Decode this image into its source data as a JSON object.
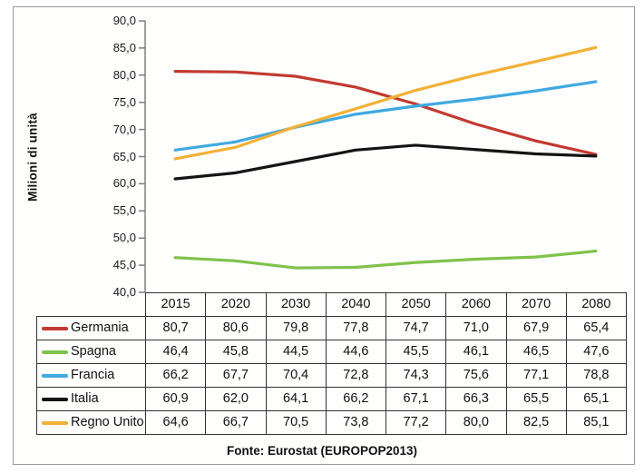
{
  "chart_data": {
    "type": "line",
    "title": "",
    "xlabel": "",
    "ylabel": "Milioni di unità",
    "ylim": [
      40,
      90
    ],
    "ytick_step": 5,
    "ytick_labels": [
      "90,0",
      "85,0",
      "80,0",
      "75,0",
      "70,0",
      "65,0",
      "60,0",
      "55,0",
      "50,0",
      "45,0",
      "40,0"
    ],
    "grid": false,
    "legend_position": "table-left-column",
    "categories": [
      "2015",
      "2020",
      "2030",
      "2040",
      "2050",
      "2060",
      "2070",
      "2080"
    ],
    "series": [
      {
        "name": "Germania",
        "color": "#c23a30",
        "values": [
          80.7,
          80.6,
          79.8,
          77.8,
          74.7,
          71.0,
          67.9,
          65.4
        ]
      },
      {
        "name": "Spagna",
        "color": "#7fc24a",
        "values": [
          46.4,
          45.8,
          44.5,
          44.6,
          45.5,
          46.1,
          46.5,
          47.6
        ]
      },
      {
        "name": "Francia",
        "color": "#3fa9e0",
        "values": [
          66.2,
          67.7,
          70.4,
          72.8,
          74.3,
          75.6,
          77.1,
          78.8
        ]
      },
      {
        "name": "Italia",
        "color": "#141414",
        "values": [
          60.9,
          62.0,
          64.1,
          66.2,
          67.1,
          66.3,
          65.5,
          65.1
        ]
      },
      {
        "name": "Regno Unito",
        "color": "#f2b136",
        "values": [
          64.6,
          66.7,
          70.5,
          73.8,
          77.2,
          80.0,
          82.5,
          85.1
        ]
      }
    ],
    "table_rows": [
      {
        "label": "Germania",
        "cells": [
          "80,7",
          "80,6",
          "79,8",
          "77,8",
          "74,7",
          "71,0",
          "67,9",
          "65,4"
        ]
      },
      {
        "label": "Spagna",
        "cells": [
          "46,4",
          "45,8",
          "44,5",
          "44,6",
          "45,5",
          "46,1",
          "46,5",
          "47,6"
        ]
      },
      {
        "label": "Francia",
        "cells": [
          "66,2",
          "67,7",
          "70,4",
          "72,8",
          "74,3",
          "75,6",
          "77,1",
          "78,8"
        ]
      },
      {
        "label": "Italia",
        "cells": [
          "60,9",
          "62,0",
          "64,1",
          "66,2",
          "67,1",
          "66,3",
          "65,5",
          "65,1"
        ]
      },
      {
        "label": "Regno Unito",
        "cells": [
          "64,6",
          "66,7",
          "70,5",
          "73,8",
          "77,2",
          "80,0",
          "82,5",
          "85,1"
        ]
      }
    ],
    "source": "Fonte: Eurostat (EUROPOP2013)",
    "axis_color": "#7f7f7f"
  }
}
